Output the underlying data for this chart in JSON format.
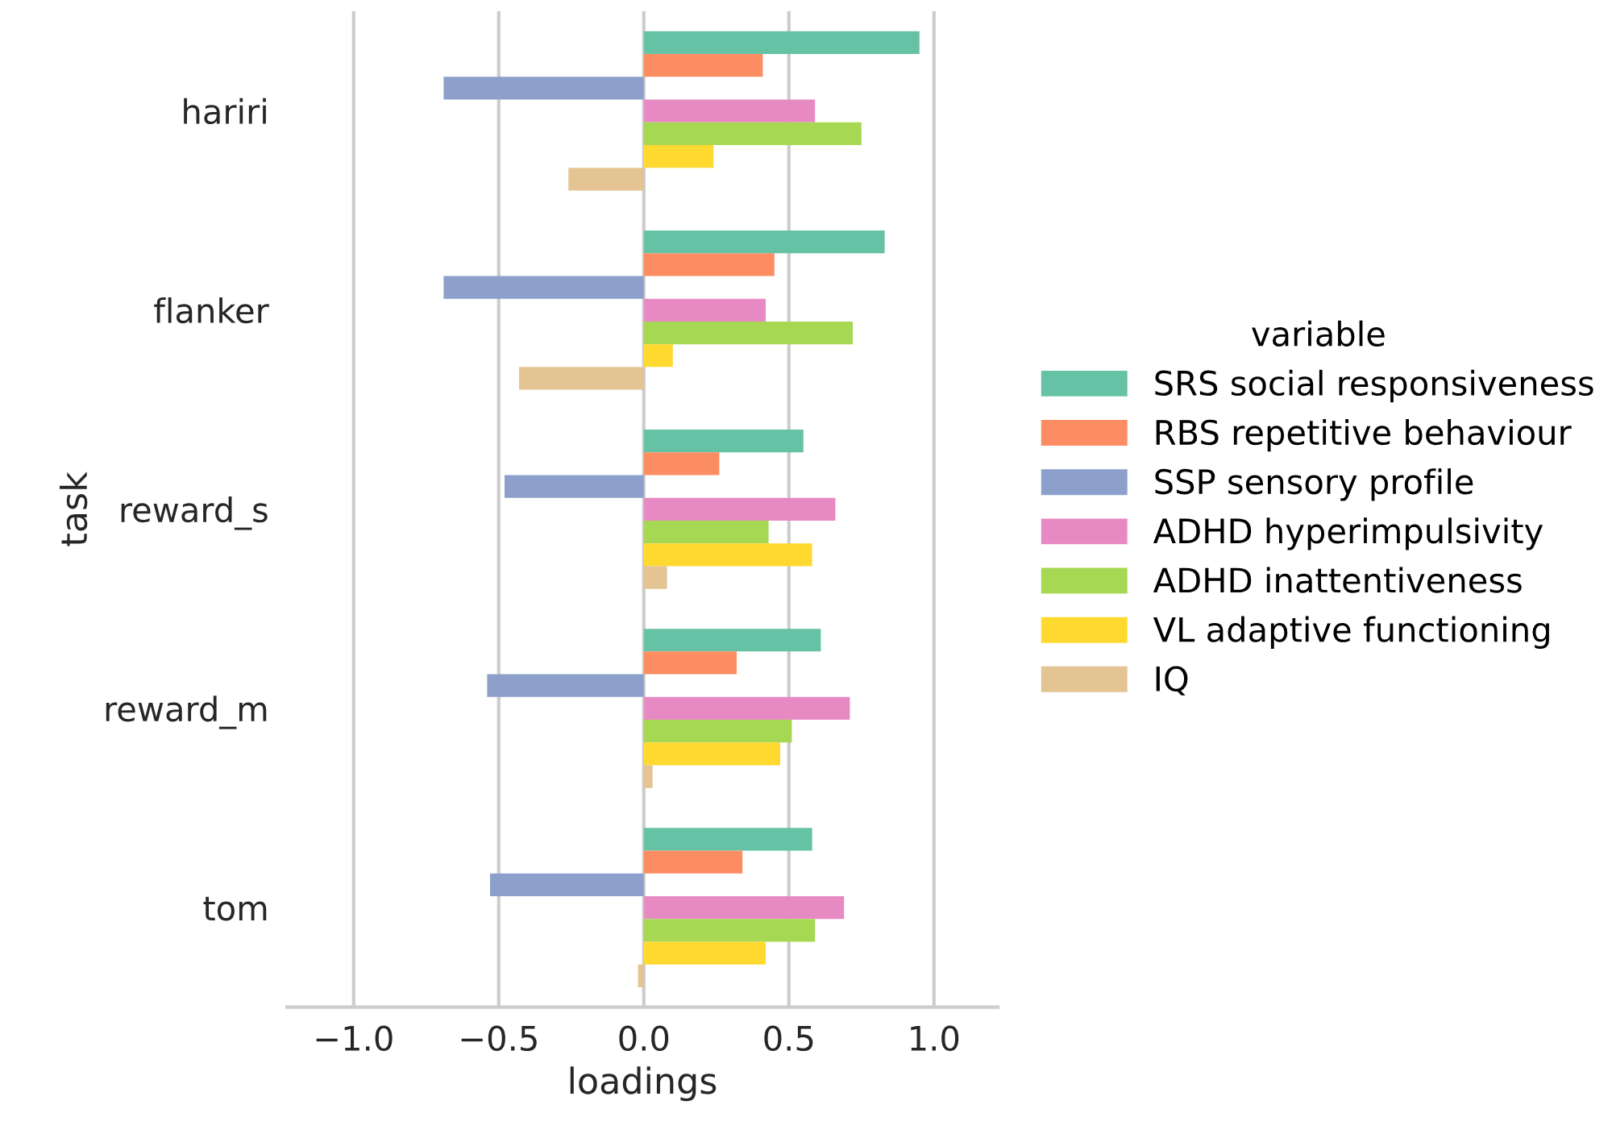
{
  "chart_data": {
    "type": "bar",
    "orientation": "horizontal",
    "xlabel": "loadings",
    "ylabel": "task",
    "legend_title": "variable",
    "categories": [
      "hariri",
      "flanker",
      "reward_s",
      "reward_m",
      "tom"
    ],
    "series": [
      {
        "name": "SRS social responsiveness",
        "color": "#66c2a5",
        "values": [
          0.95,
          0.83,
          0.55,
          0.61,
          0.58
        ]
      },
      {
        "name": "RBS repetitive behaviour",
        "color": "#fc8d62",
        "values": [
          0.41,
          0.45,
          0.26,
          0.32,
          0.34
        ]
      },
      {
        "name": "SSP sensory profile",
        "color": "#8da0cb",
        "values": [
          -0.69,
          -0.69,
          -0.48,
          -0.54,
          -0.53
        ]
      },
      {
        "name": "ADHD hyperimpulsivity",
        "color": "#e78ac3",
        "values": [
          0.59,
          0.42,
          0.66,
          0.71,
          0.69
        ]
      },
      {
        "name": "ADHD inattentiveness",
        "color": "#a6d854",
        "values": [
          0.75,
          0.72,
          0.43,
          0.51,
          0.59
        ]
      },
      {
        "name": "VL adaptive functioning",
        "color": "#ffd92f",
        "values": [
          0.24,
          0.1,
          0.58,
          0.47,
          0.42
        ]
      },
      {
        "name": "IQ",
        "color": "#e5c494",
        "values": [
          -0.26,
          -0.43,
          0.08,
          0.03,
          -0.02
        ]
      }
    ],
    "xlim": [
      -1.23,
      1.22
    ],
    "xticks": [
      {
        "value": -1.0,
        "label": "−1.0"
      },
      {
        "value": -0.5,
        "label": "−0.5"
      },
      {
        "value": 0.0,
        "label": "0.0"
      },
      {
        "value": 0.5,
        "label": "0.5"
      },
      {
        "value": 1.0,
        "label": "1.0"
      }
    ],
    "grid": "x",
    "legend": "right"
  }
}
